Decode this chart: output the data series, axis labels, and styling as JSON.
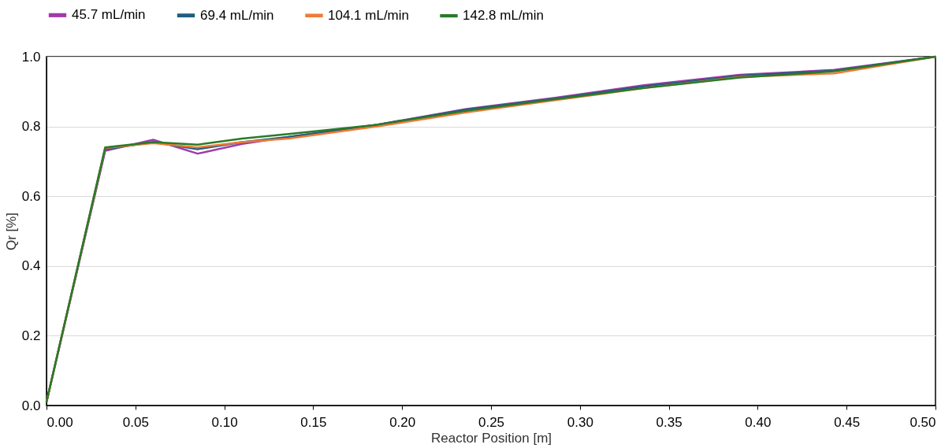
{
  "chart_data": {
    "type": "line",
    "xlabel": "Reactor Position [m]",
    "ylabel": "Qr [%]",
    "x": [
      0,
      0.033,
      0.06,
      0.085,
      0.11,
      0.136,
      0.186,
      0.236,
      0.286,
      0.336,
      0.39,
      0.443,
      0.5
    ],
    "series": [
      {
        "name": "45.7 mL/min",
        "color": "#a23aa8",
        "values": [
          0.01,
          0.73,
          0.762,
          0.722,
          0.75,
          0.77,
          0.805,
          0.85,
          0.882,
          0.918,
          0.948,
          0.962,
          1.0
        ]
      },
      {
        "name": "69.4 mL/min",
        "color": "#1f5f82",
        "values": [
          0.01,
          0.735,
          0.755,
          0.735,
          0.755,
          0.77,
          0.805,
          0.848,
          0.88,
          0.915,
          0.945,
          0.96,
          1.0
        ]
      },
      {
        "name": "104.1 mL/min",
        "color": "#f07a35",
        "values": [
          0.01,
          0.738,
          0.752,
          0.74,
          0.755,
          0.765,
          0.8,
          0.84,
          0.875,
          0.91,
          0.942,
          0.952,
          1.0
        ]
      },
      {
        "name": "142.8 mL/min",
        "color": "#2a7a28",
        "values": [
          0.01,
          0.74,
          0.755,
          0.748,
          0.765,
          0.778,
          0.805,
          0.845,
          0.878,
          0.91,
          0.94,
          0.958,
          1.0
        ]
      }
    ],
    "xlim": [
      0,
      0.5
    ],
    "xticks": [
      {
        "value": 0,
        "label": "0.00"
      },
      0.05,
      {
        "value": 0.1,
        "label": "0.10"
      },
      0.15,
      {
        "value": 0.2,
        "label": "0.20"
      },
      0.25,
      {
        "value": 0.3,
        "label": "0.30"
      },
      0.35,
      {
        "value": 0.4,
        "label": "0.40"
      },
      0.45,
      {
        "value": 0.5,
        "label": "0.50"
      }
    ],
    "ylim": [
      0,
      1
    ],
    "yticks": [
      {
        "value": 0,
        "label": "0.0"
      },
      0.2,
      0.4,
      0.6,
      0.8,
      {
        "value": 1,
        "label": "1.0"
      }
    ],
    "grid": "y",
    "legend": "top",
    "marker": "none",
    "line_style": "solid"
  }
}
